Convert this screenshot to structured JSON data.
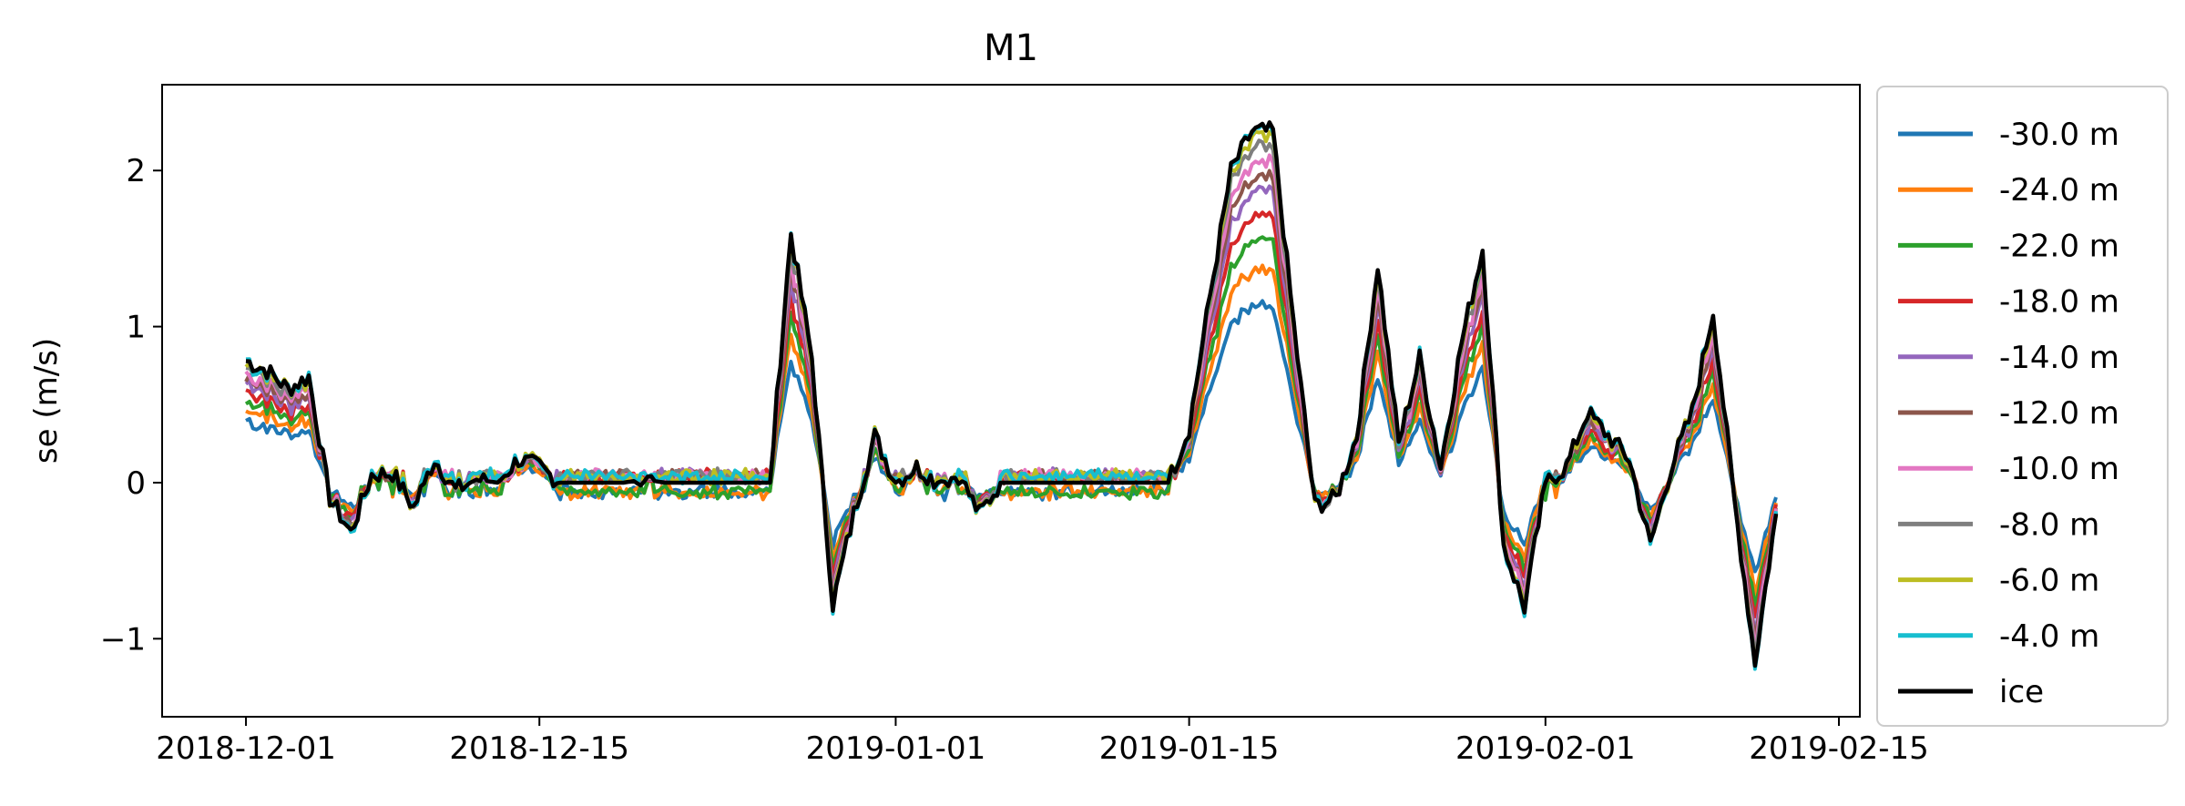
{
  "chart_data": {
    "type": "line",
    "title": "M1",
    "xlabel": "",
    "ylabel": "se (m/s)",
    "x_type": "date",
    "xlim": [
      "2018-11-27",
      "2019-02-16"
    ],
    "ylim": [
      -1.5,
      2.55
    ],
    "x_ticks": [
      "2018-12-01",
      "2018-12-15",
      "2019-01-01",
      "2019-01-15",
      "2019-02-01",
      "2019-02-15"
    ],
    "y_ticks": [
      -1,
      0,
      1,
      2
    ],
    "y_tick_labels": [
      "−1",
      "0",
      "1",
      "2"
    ],
    "grid": false,
    "legend_position": "outside-right",
    "colors": [
      "#1f77b4",
      "#ff7f0e",
      "#2ca02c",
      "#d62728",
      "#9467bd",
      "#8c564b",
      "#e377c2",
      "#7f7f7f",
      "#bcbd22",
      "#17becf",
      "#000000"
    ],
    "x": [
      "2018-12-01",
      "2018-12-02",
      "2018-12-03",
      "2018-12-04",
      "2018-12-05",
      "2018-12-06",
      "2018-12-07",
      "2018-12-08",
      "2018-12-09",
      "2018-12-10",
      "2018-12-11",
      "2018-12-12",
      "2018-12-13",
      "2018-12-14",
      "2018-12-15",
      "2018-12-16",
      "2018-12-17",
      "2018-12-18",
      "2018-12-19",
      "2018-12-20",
      "2018-12-21",
      "2018-12-22",
      "2018-12-23",
      "2018-12-24",
      "2018-12-25",
      "2018-12-26",
      "2018-12-27",
      "2018-12-28",
      "2018-12-29",
      "2018-12-30",
      "2018-12-31",
      "2019-01-01",
      "2019-01-02",
      "2019-01-03",
      "2019-01-04",
      "2019-01-05",
      "2019-01-06",
      "2019-01-07",
      "2019-01-08",
      "2019-01-09",
      "2019-01-10",
      "2019-01-11",
      "2019-01-12",
      "2019-01-13",
      "2019-01-14",
      "2019-01-15",
      "2019-01-16",
      "2019-01-17",
      "2019-01-18",
      "2019-01-19",
      "2019-01-20",
      "2019-01-21",
      "2019-01-22",
      "2019-01-23",
      "2019-01-24",
      "2019-01-25",
      "2019-01-26",
      "2019-01-27",
      "2019-01-28",
      "2019-01-29",
      "2019-01-30",
      "2019-01-31",
      "2019-02-01",
      "2019-02-02",
      "2019-02-03",
      "2019-02-04",
      "2019-02-05",
      "2019-02-06",
      "2019-02-07",
      "2019-02-08",
      "2019-02-09",
      "2019-02-10",
      "2019-02-11",
      "2019-02-12"
    ],
    "ice": [
      0.78,
      0.72,
      0.6,
      0.68,
      -0.1,
      -0.32,
      0.05,
      0.06,
      -0.16,
      0.15,
      -0.05,
      0.02,
      0.0,
      0.15,
      0.1,
      0.0,
      0.0,
      0.0,
      0.0,
      0.02,
      0.0,
      0.0,
      0.0,
      0.0,
      0.0,
      0.0,
      1.6,
      0.8,
      -0.78,
      -0.2,
      0.3,
      0.0,
      0.1,
      0.0,
      0.05,
      -0.2,
      0.0,
      0.0,
      0.0,
      0.0,
      0.0,
      0.0,
      0.0,
      0.0,
      0.0,
      0.35,
      1.2,
      2.0,
      2.25,
      2.25,
      1.0,
      -0.15,
      -0.1,
      0.3,
      1.4,
      0.25,
      0.8,
      0.1,
      0.9,
      1.5,
      -0.4,
      -0.8,
      0.0,
      0.1,
      0.45,
      0.3,
      0.15,
      -0.4,
      0.1,
      0.45,
      1.1,
      -0.1,
      -1.15,
      -0.2
    ],
    "depth_scale": [
      0.5,
      0.6,
      0.68,
      0.75,
      0.82,
      0.86,
      0.9,
      0.95,
      0.98,
      1.0
    ],
    "series": [
      {
        "name": "-30.0 m"
      },
      {
        "name": "-24.0 m"
      },
      {
        "name": "-22.0 m"
      },
      {
        "name": "-18.0 m"
      },
      {
        "name": "-14.0 m"
      },
      {
        "name": "-12.0 m"
      },
      {
        "name": "-10.0 m"
      },
      {
        "name": "-8.0 m"
      },
      {
        "name": "-6.0 m"
      },
      {
        "name": "-4.0 m"
      },
      {
        "name": "ice"
      }
    ]
  }
}
